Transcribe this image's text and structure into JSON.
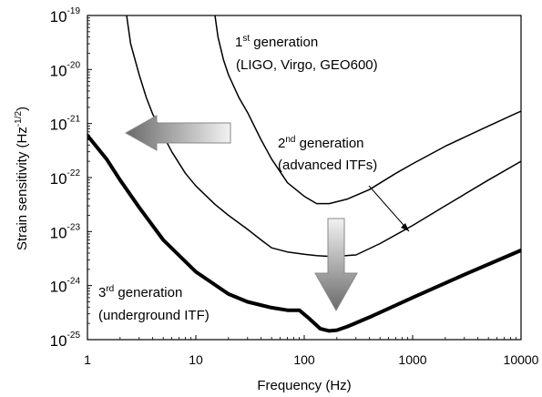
{
  "chart_data": {
    "type": "line",
    "title": "",
    "xlabel": "Frequency (Hz)",
    "ylabel": "Strain sensitivity (Hz",
    "ylabel_exp": "-1/2",
    "ylabel_close": ")",
    "xscale": "log",
    "yscale": "log",
    "xlim": [
      1,
      10000
    ],
    "ylim": [
      1e-25,
      1e-19
    ],
    "grid": false,
    "xticks": [
      {
        "value": 1,
        "label": "1"
      },
      {
        "value": 10,
        "label": "10"
      },
      {
        "value": 100,
        "label": "100"
      },
      {
        "value": 1000,
        "label": "1000"
      },
      {
        "value": 10000,
        "label": "10000"
      }
    ],
    "yticks": [
      {
        "value": 1e-19,
        "base": "10",
        "exp": "-19"
      },
      {
        "value": 1e-20,
        "base": "10",
        "exp": "-20"
      },
      {
        "value": 1e-21,
        "base": "10",
        "exp": "-21"
      },
      {
        "value": 1e-22,
        "base": "10",
        "exp": "-22"
      },
      {
        "value": 1e-23,
        "base": "10",
        "exp": "-23"
      },
      {
        "value": 1e-24,
        "base": "10",
        "exp": "-24"
      },
      {
        "value": 1e-25,
        "base": "10",
        "exp": "-25"
      }
    ],
    "series": [
      {
        "color": "#000000",
        "width": 1.5,
        "x": [
          2.3,
          2.5,
          3,
          3.5,
          4,
          5,
          6,
          8,
          10,
          15,
          20,
          30,
          40,
          50,
          70,
          100,
          130,
          160,
          200,
          300,
          500,
          1000,
          2000,
          5000,
          10000
        ],
        "y": [
          1e-19,
          3e-20,
          8e-21,
          3e-21,
          1.5e-21,
          6e-22,
          3e-22,
          1.2e-22,
          7e-23,
          3.2e-23,
          2e-23,
          1.1e-23,
          7e-24,
          5e-24,
          4.2e-24,
          3.8e-24,
          3.6e-24,
          3.5e-24,
          3.5e-24,
          3.7e-24,
          6e-24,
          1.3e-23,
          3e-23,
          9e-23,
          2e-22
        ]
      },
      {
        "color": "#000000",
        "width": 1.5,
        "x": [
          15,
          16,
          18,
          20,
          25,
          30,
          40,
          50,
          70,
          100,
          130,
          170,
          250,
          400,
          700,
          1000,
          2000,
          5000,
          10000
        ],
        "y": [
          1e-19,
          4e-20,
          1.5e-20,
          8e-21,
          3e-21,
          1.6e-21,
          5e-22,
          2.2e-22,
          8e-23,
          4.5e-23,
          3.3e-23,
          3.3e-23,
          4e-23,
          6e-23,
          1.2e-22,
          1.8e-22,
          3.8e-22,
          9e-22,
          1.7e-21
        ]
      },
      {
        "color": "#000000",
        "width": 4,
        "x": [
          1,
          1.5,
          2,
          3,
          5,
          10,
          20,
          30,
          50,
          70,
          90,
          110,
          140,
          170,
          200,
          250,
          400,
          1000,
          3000,
          10000
        ],
        "y": [
          6e-22,
          2.2e-22,
          9e-23,
          2.8e-23,
          7e-24,
          1.8e-24,
          7e-25,
          5e-25,
          3.9e-25,
          3.5e-25,
          3.5e-25,
          2.5e-25,
          1.6e-25,
          1.45e-25,
          1.5e-25,
          1.75e-25,
          2.6e-25,
          6e-25,
          1.6e-24,
          4.5e-24
        ]
      }
    ],
    "annotations": [
      {
        "pre": "1",
        "sup": "st",
        "post": " generation"
      },
      {
        "text": "(LIGO, Virgo, GEO600)"
      },
      {
        "pre": "2",
        "sup": "nd",
        "post": " generation"
      },
      {
        "text": "(advanced ITFs)"
      },
      {
        "pre": "3",
        "sup": "rd",
        "post": " generation"
      },
      {
        "text": "(underground ITF)"
      }
    ]
  }
}
